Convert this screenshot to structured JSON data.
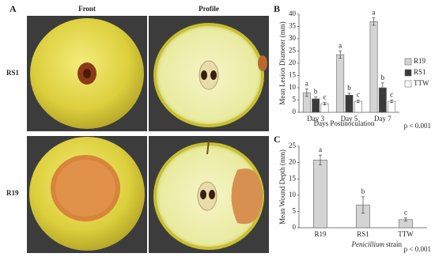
{
  "photo_panel": {
    "label": "A",
    "columns": [
      "Front",
      "Profile"
    ],
    "rows": [
      "RS1",
      "R19"
    ]
  },
  "chart_data": [
    {
      "type": "bar",
      "panel_label": "B",
      "y_label": "Mean Lesion Diameter (mm)",
      "x_label": "Days Postinoculation",
      "annotation": "p < 0.001",
      "categories": [
        "Day 3",
        "Day 5",
        "Day 7"
      ],
      "series": [
        {
          "name": "R19",
          "color": "#d4d4d4",
          "values": [
            8,
            23.5,
            37
          ],
          "errors": [
            1.5,
            1.5,
            1.5
          ],
          "sig_labels": [
            "a",
            "a",
            "a"
          ]
        },
        {
          "name": "RS1",
          "color": "#3a3a3a",
          "values": [
            5.5,
            7,
            10
          ],
          "errors": [
            0.8,
            0.8,
            2
          ],
          "sig_labels": [
            "b",
            "b",
            "b"
          ]
        },
        {
          "name": "TTW",
          "color": "#ffffff",
          "values": [
            3.5,
            4.5,
            4.5
          ],
          "errors": [
            0.5,
            0.5,
            0.5
          ],
          "sig_labels": [
            "c",
            "c",
            "c"
          ]
        }
      ],
      "ylim": [
        0,
        40
      ],
      "yticks": [
        0,
        5,
        10,
        15,
        20,
        25,
        30,
        35,
        40
      ],
      "legend": "right"
    },
    {
      "type": "bar",
      "panel_label": "C",
      "y_label": "Mean Wound Depth (mm)",
      "x_label_italic": "Penicillium",
      "x_label": "strain",
      "annotation": "p < 0.001",
      "categories": [
        "R19",
        "RS1",
        "TTW"
      ],
      "values": [
        20.8,
        7,
        2.5
      ],
      "errors": [
        1.5,
        2.5,
        0.5
      ],
      "sig_labels": [
        "a",
        "b",
        "c"
      ],
      "color": "#d4d4d4",
      "ylim": [
        0,
        25
      ],
      "yticks": [
        0,
        5,
        10,
        15,
        20,
        25
      ]
    }
  ]
}
